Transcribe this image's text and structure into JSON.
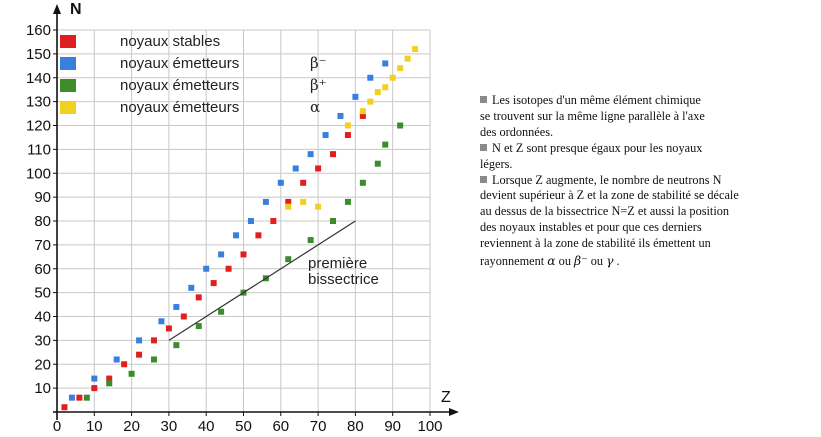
{
  "chart_data": {
    "type": "scatter",
    "xlabel": "Z",
    "ylabel": "N",
    "xlim": [
      0,
      100
    ],
    "ylim": [
      0,
      160
    ],
    "x_ticks": [
      "0",
      "10",
      "20",
      "30",
      "40",
      "50",
      "60",
      "70",
      "80",
      "90",
      "100"
    ],
    "y_ticks": [
      "10",
      "20",
      "30",
      "40",
      "50",
      "60",
      "70",
      "80",
      "90",
      "100",
      "110",
      "120",
      "130",
      "140",
      "150",
      "160"
    ],
    "grid": true,
    "legend_position": "top-left",
    "series": [
      {
        "name": "noyaux stables",
        "symbol": "",
        "color": "#e02020",
        "points": [
          [
            2,
            2
          ],
          [
            6,
            6
          ],
          [
            10,
            10
          ],
          [
            14,
            14
          ],
          [
            18,
            20
          ],
          [
            22,
            24
          ],
          [
            26,
            30
          ],
          [
            30,
            35
          ],
          [
            34,
            40
          ],
          [
            38,
            48
          ],
          [
            42,
            54
          ],
          [
            46,
            60
          ],
          [
            50,
            66
          ],
          [
            54,
            74
          ],
          [
            58,
            80
          ],
          [
            62,
            88
          ],
          [
            66,
            96
          ],
          [
            70,
            102
          ],
          [
            74,
            108
          ],
          [
            78,
            116
          ],
          [
            82,
            124
          ]
        ]
      },
      {
        "name": "noyaux émetteurs",
        "symbol": "β⁻",
        "color": "#3a7fe0",
        "points": [
          [
            4,
            6
          ],
          [
            10,
            14
          ],
          [
            16,
            22
          ],
          [
            22,
            30
          ],
          [
            28,
            38
          ],
          [
            32,
            44
          ],
          [
            36,
            52
          ],
          [
            40,
            60
          ],
          [
            44,
            66
          ],
          [
            48,
            74
          ],
          [
            52,
            80
          ],
          [
            56,
            88
          ],
          [
            60,
            96
          ],
          [
            64,
            102
          ],
          [
            68,
            108
          ],
          [
            72,
            116
          ],
          [
            76,
            124
          ],
          [
            80,
            132
          ],
          [
            84,
            140
          ],
          [
            88,
            146
          ]
        ]
      },
      {
        "name": "noyaux émetteurs",
        "symbol": "β⁺",
        "color": "#3c8c2c",
        "points": [
          [
            8,
            6
          ],
          [
            14,
            12
          ],
          [
            20,
            16
          ],
          [
            26,
            22
          ],
          [
            32,
            28
          ],
          [
            38,
            36
          ],
          [
            44,
            42
          ],
          [
            50,
            50
          ],
          [
            56,
            56
          ],
          [
            62,
            64
          ],
          [
            68,
            72
          ],
          [
            74,
            80
          ],
          [
            78,
            88
          ],
          [
            82,
            96
          ],
          [
            86,
            104
          ],
          [
            88,
            112
          ],
          [
            92,
            120
          ]
        ]
      },
      {
        "name": "noyaux émetteurs",
        "symbol": "α",
        "color": "#f0d020",
        "points": [
          [
            62,
            86
          ],
          [
            66,
            88
          ],
          [
            70,
            86
          ],
          [
            78,
            120
          ],
          [
            82,
            126
          ],
          [
            84,
            130
          ],
          [
            86,
            134
          ],
          [
            88,
            136
          ],
          [
            90,
            140
          ],
          [
            92,
            144
          ],
          [
            94,
            148
          ],
          [
            96,
            152
          ]
        ]
      }
    ],
    "annotation": {
      "text_1": "première",
      "text_2": "bissectrice",
      "line": [
        [
          30,
          30
        ],
        [
          80,
          80
        ]
      ]
    }
  },
  "notes": [
    {
      "lines": [
        "Les isotopes d'un même élément chimique",
        "se trouvent sur la même ligne parallèle à l'axe",
        "des ordonnées."
      ]
    },
    {
      "lines": [
        "N et Z sont presque égaux pour les noyaux",
        "légers."
      ]
    },
    {
      "lines": [
        "Lorsque Z augmente, le nombre de neutrons N",
        "devient supérieur à Z et la zone de stabilité se décale",
        "au dessus de la bissectrice N=Z et aussi la position",
        "des noyaux instables et pour que ces derniers",
        "reviennent à la zone de stabilité ils émettent un"
      ]
    }
  ],
  "notes_last": {
    "prefix": "rayonnement",
    "sym1": "α",
    "sep1": "ou",
    "sym2": "β⁻",
    "sep2": "ou",
    "sym3": "γ",
    "end": "."
  },
  "colors": {
    "grid": "#c8c8c8",
    "axis": "#111111",
    "bissectrice": "#333333"
  }
}
